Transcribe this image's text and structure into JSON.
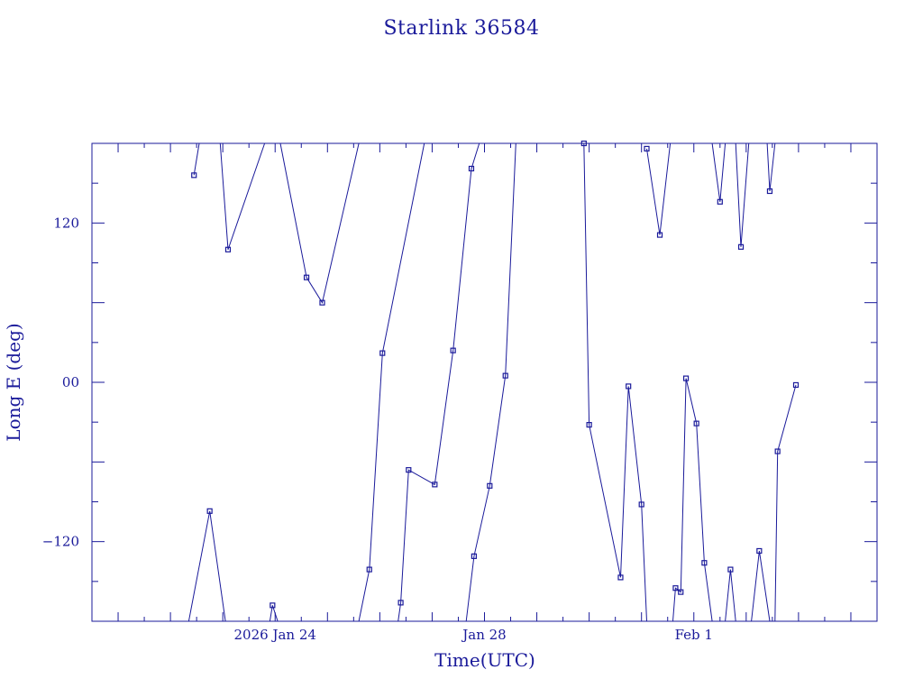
{
  "colors": {
    "ink": "#1a1a9a",
    "background": "#ffffff"
  },
  "chart_data": {
    "type": "line",
    "title": "Starlink 36584",
    "xlabel": "Time(UTC)",
    "ylabel": "Long E (deg)",
    "x_unit": "days since 2026 Jan 24 00:00 UTC",
    "xlim": [
      -3.5,
      11.5
    ],
    "ylim": [
      -180,
      180
    ],
    "x_ticks": [
      {
        "value": 0,
        "label": "2026 Jan 24"
      },
      {
        "value": 4,
        "label": "Jan 28"
      },
      {
        "value": 8,
        "label": "Feb  1"
      }
    ],
    "y_ticks": [
      {
        "value": 120,
        "label": "120"
      },
      {
        "value": 0,
        "label": "00"
      },
      {
        "value": -120,
        "label": "−120"
      }
    ],
    "grid": false,
    "legend": "none",
    "series": [
      {
        "name": "",
        "points": [
          [
            -1.55,
            156
          ],
          [
            -1.45,
            180
          ],
          null,
          [
            -1.05,
            180
          ],
          [
            -0.9,
            100
          ],
          [
            -0.2,
            180
          ],
          null,
          [
            0.1,
            180
          ],
          [
            0.6,
            79
          ],
          [
            0.9,
            60
          ],
          [
            1.6,
            180
          ],
          null,
          [
            2.85,
            180
          ],
          [
            2.05,
            22
          ],
          [
            1.8,
            -141
          ],
          [
            1.6,
            -180
          ],
          null,
          [
            -1.65,
            -180
          ],
          [
            -1.25,
            -97
          ],
          [
            -0.95,
            -180
          ],
          null,
          [
            -0.1,
            -180
          ],
          [
            -0.05,
            -168
          ],
          [
            0.05,
            -180
          ],
          null,
          [
            3.9,
            180
          ],
          [
            3.75,
            161
          ],
          [
            3.4,
            24
          ],
          [
            3.05,
            -77
          ],
          [
            2.55,
            -66
          ],
          [
            2.4,
            -166
          ],
          [
            2.35,
            -180
          ],
          null,
          [
            4.6,
            180
          ],
          [
            4.4,
            5
          ],
          [
            4.1,
            -78
          ],
          [
            3.8,
            -131
          ],
          [
            3.65,
            -180
          ],
          null,
          [
            5.85,
            180
          ],
          [
            5.9,
            180
          ],
          [
            6.0,
            -32
          ],
          [
            6.6,
            -147
          ],
          [
            6.75,
            -3
          ],
          [
            7.0,
            -92
          ],
          [
            7.1,
            -180
          ],
          null,
          [
            7.1,
            176
          ],
          [
            7.35,
            111
          ],
          [
            7.55,
            180
          ],
          null,
          [
            8.35,
            180
          ],
          [
            8.5,
            136
          ],
          [
            8.6,
            180
          ],
          null,
          [
            8.8,
            180
          ],
          [
            8.9,
            102
          ],
          [
            9.05,
            180
          ],
          null,
          [
            9.4,
            180
          ],
          [
            9.45,
            144
          ],
          [
            9.55,
            180
          ],
          null,
          [
            7.6,
            -180
          ],
          [
            7.65,
            -155
          ],
          [
            7.75,
            -158
          ],
          [
            7.85,
            3
          ],
          [
            8.05,
            -31
          ],
          [
            8.2,
            -136
          ],
          [
            8.35,
            -180
          ],
          null,
          [
            8.6,
            -180
          ],
          [
            8.7,
            -141
          ],
          [
            8.8,
            -180
          ],
          null,
          [
            9.1,
            -180
          ],
          [
            9.25,
            -127
          ],
          [
            9.45,
            -180
          ],
          null,
          [
            9.55,
            -180
          ],
          [
            9.6,
            -52
          ],
          [
            9.95,
            -2
          ]
        ],
        "markers": [
          [
            -1.55,
            156
          ],
          [
            -0.9,
            100
          ],
          [
            0.6,
            79
          ],
          [
            0.9,
            60
          ],
          [
            -1.25,
            -97
          ],
          [
            -0.05,
            -168
          ],
          [
            2.05,
            22
          ],
          [
            1.8,
            -141
          ],
          [
            3.75,
            161
          ],
          [
            3.4,
            24
          ],
          [
            3.05,
            -77
          ],
          [
            2.55,
            -66
          ],
          [
            2.4,
            -166
          ],
          [
            5.9,
            180
          ],
          [
            4.4,
            5
          ],
          [
            4.1,
            -78
          ],
          [
            3.8,
            -131
          ],
          [
            6.0,
            -32
          ],
          [
            6.6,
            -147
          ],
          [
            6.75,
            -3
          ],
          [
            7.0,
            -92
          ],
          [
            7.1,
            176
          ],
          [
            7.35,
            111
          ],
          [
            8.5,
            136
          ],
          [
            8.9,
            102
          ],
          [
            9.45,
            144
          ],
          [
            7.65,
            -155
          ],
          [
            7.75,
            -158
          ],
          [
            7.85,
            3
          ],
          [
            8.05,
            -31
          ],
          [
            8.2,
            -136
          ],
          [
            8.7,
            -141
          ],
          [
            9.25,
            -127
          ],
          [
            9.6,
            -52
          ],
          [
            9.95,
            -2
          ]
        ]
      }
    ]
  }
}
